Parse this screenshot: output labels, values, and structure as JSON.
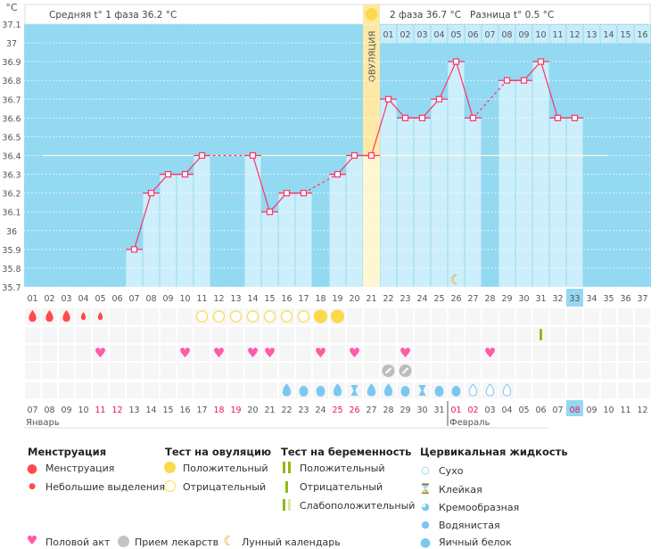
{
  "header": {
    "unit": "°C",
    "phase1_label": "Средняя t° 1 фаза 36.2 °C",
    "phase2_label": "2 фаза 36.7 °C",
    "difference_label": "Разница t° 0.5 °C",
    "ovulation_label": "ОВУЛЯЦИЯ"
  },
  "chart_data": {
    "type": "line",
    "ylim": [
      35.7,
      37.1
    ],
    "yticks": [
      "37.1",
      "37",
      "36.9",
      "36.8",
      "36.7",
      "36.6",
      "36.5",
      "36.4",
      "36.3",
      "36.2",
      "36.1",
      "36",
      "35.9",
      "35.8",
      "35.7"
    ],
    "cycle_days": [
      "01",
      "02",
      "03",
      "04",
      "05",
      "06",
      "07",
      "08",
      "09",
      "10",
      "11",
      "12",
      "13",
      "14",
      "15",
      "16",
      "17",
      "18",
      "19",
      "20",
      "21",
      "22",
      "23",
      "24",
      "25",
      "26",
      "27",
      "28",
      "29",
      "30",
      "31",
      "32",
      "33",
      "34",
      "35",
      "36",
      "37"
    ],
    "temperatures": [
      null,
      null,
      null,
      null,
      null,
      null,
      35.9,
      36.2,
      36.3,
      36.3,
      36.4,
      null,
      null,
      36.4,
      36.1,
      36.2,
      36.2,
      null,
      36.3,
      36.4,
      36.4,
      36.7,
      36.6,
      36.6,
      36.7,
      36.9,
      36.6,
      null,
      36.8,
      36.8,
      36.9,
      36.6,
      36.6,
      null,
      null,
      null,
      null
    ],
    "coverline": 36.4,
    "ovulation_day": 21,
    "current_day": 33,
    "phase2_day_labels": [
      "01",
      "02",
      "03",
      "04",
      "05",
      "06",
      "07",
      "08",
      "09",
      "10",
      "11",
      "12",
      "13",
      "14",
      "15",
      "16"
    ],
    "moon_day": 26
  },
  "calendar": {
    "dates": [
      "07",
      "08",
      "09",
      "10",
      "11",
      "12",
      "13",
      "14",
      "15",
      "16",
      "17",
      "18",
      "19",
      "20",
      "21",
      "22",
      "23",
      "24",
      "25",
      "26",
      "27",
      "28",
      "29",
      "30",
      "31",
      "01",
      "02",
      "03",
      "04",
      "05",
      "06",
      "07",
      "08",
      "09",
      "10",
      "11",
      "12"
    ],
    "weekend_days": [
      4,
      5,
      11,
      12,
      18,
      19,
      25,
      26,
      32
    ],
    "months": [
      {
        "label": "Январь",
        "start_day": 1
      },
      {
        "label": "Февраль",
        "start_day": 26
      }
    ],
    "today_date": "08"
  },
  "markers": {
    "menstruation": {
      "1": "heavy",
      "2": "heavy",
      "3": "heavy",
      "4": "light",
      "5": "light"
    },
    "ovulation_test": {
      "11": "negative",
      "12": "negative",
      "13": "negative",
      "14": "negative",
      "15": "negative",
      "16": "negative",
      "17": "negative",
      "18": "positive",
      "19": "positive"
    },
    "pregnancy_test": {
      "31": "negative"
    },
    "intercourse": [
      5,
      10,
      12,
      14,
      15,
      18,
      20,
      23,
      28
    ],
    "medication": [
      22,
      23
    ],
    "cervical_fluid": {
      "10": "watery",
      "11": "egg-white",
      "12": "egg-white",
      "13": "watery",
      "14": "sticky",
      "15": "watery",
      "16": "watery",
      "17": "egg-white",
      "18": "sticky",
      "19": "egg-white",
      "20": "egg-white",
      "21": "dry",
      "22": "dry",
      "23": "dry"
    }
  },
  "colors": {
    "bg": "#93d9f2",
    "bar": "#cdeefb",
    "line": "#ff3366",
    "ovulation": "#fde9a5",
    "menstruation": "#ff4b4b",
    "ovu_test": "#fcd94a",
    "heart": "#ff5aa8",
    "pill": "#bdbdbd",
    "fluid": "#7cc7f0",
    "preg": "#8fba18",
    "moon": "#f29a10",
    "weekend": "#e8174f"
  },
  "legend": {
    "menstruation": {
      "title": "Менструация",
      "items": [
        "Менструация",
        "Небольшие выделения"
      ]
    },
    "ovulation_test": {
      "title": "Тест на овуляцию",
      "items": [
        "Положительный",
        "Отрицательный"
      ]
    },
    "pregnancy_test": {
      "title": "Тест на беременность",
      "items": [
        "Положительный",
        "Отрицательный",
        "Слабоположительный"
      ]
    },
    "cervical_fluid": {
      "title": "Цервикальная жидкость",
      "items": [
        "Сухо",
        "Клейкая",
        "Кремообразная",
        "Водянистая",
        "Яичный белок"
      ]
    },
    "other": [
      "Половой акт",
      "Прием лекарств",
      "Лунный календарь"
    ]
  }
}
